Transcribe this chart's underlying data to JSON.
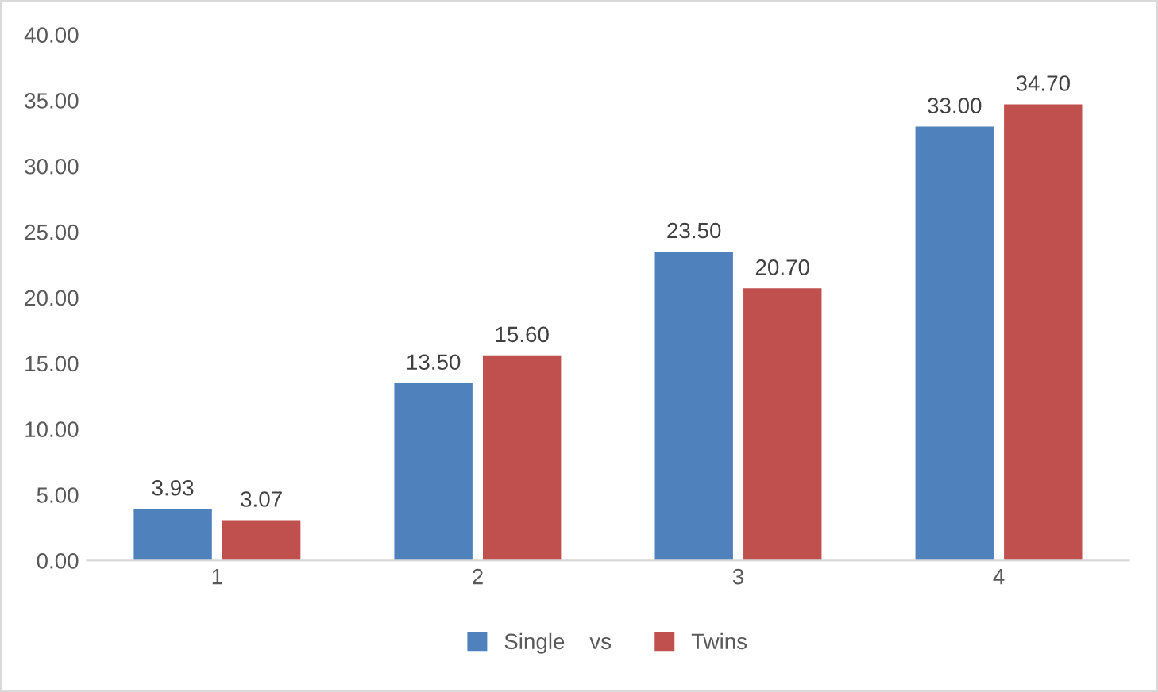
{
  "chart_data": {
    "type": "bar",
    "categories": [
      "1",
      "2",
      "3",
      "4"
    ],
    "series": [
      {
        "name": "Single    vs",
        "color": "#4f81bd",
        "values": [
          3.93,
          13.5,
          23.5,
          33.0
        ],
        "value_labels": [
          "3.93",
          "13.50",
          "23.50",
          "33.00"
        ]
      },
      {
        "name": "Twins",
        "color": "#c0504d",
        "values": [
          3.07,
          15.6,
          20.7,
          34.7
        ],
        "value_labels": [
          "3.07",
          "15.60",
          "20.70",
          "34.70"
        ]
      }
    ],
    "ylim": [
      0,
      40
    ],
    "yticks": [
      {
        "value": 0,
        "label": "0.00"
      },
      {
        "value": 5,
        "label": "5.00"
      },
      {
        "value": 10,
        "label": "10.00"
      },
      {
        "value": 15,
        "label": "15.00"
      },
      {
        "value": 20,
        "label": "20.00"
      },
      {
        "value": 25,
        "label": "25.00"
      },
      {
        "value": 30,
        "label": "30.00"
      },
      {
        "value": 35,
        "label": "35.00"
      },
      {
        "value": 40,
        "label": "40.00"
      }
    ],
    "grid": false,
    "legend": "bottom"
  }
}
